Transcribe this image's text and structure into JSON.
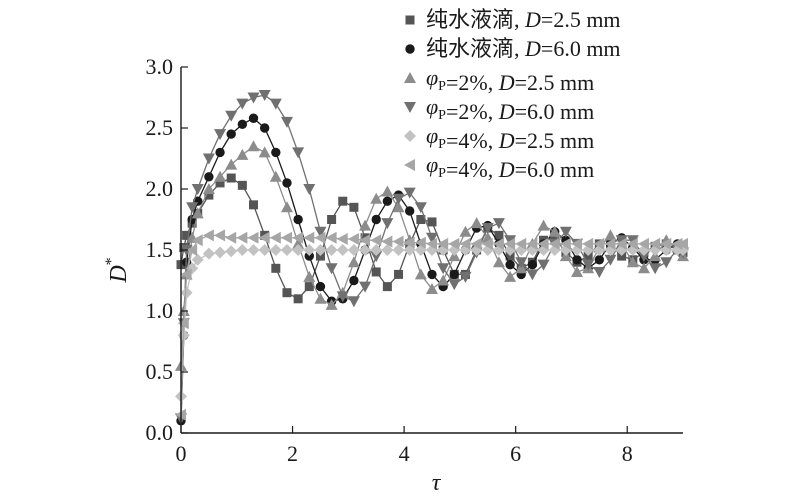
{
  "chart_data": {
    "type": "line",
    "xlabel": "τ",
    "ylabel": "D*",
    "xlim": [
      0,
      9
    ],
    "ylim": [
      0,
      3
    ],
    "x_ticks": [
      0,
      2,
      4,
      6,
      8
    ],
    "y_ticks": [
      0.0,
      0.5,
      1.0,
      1.5,
      2.0,
      2.5,
      3.0
    ],
    "x_tick_labels": [
      "0",
      "2",
      "4",
      "6",
      "8"
    ],
    "y_tick_labels": [
      "0.0",
      "0.5",
      "1.0",
      "1.5",
      "2.0",
      "2.5",
      "3.0"
    ],
    "grid": false,
    "legend_position": "top-right",
    "legend": [
      "纯水液滴, D=2.5 mm",
      "纯水液滴, D=6.0 mm",
      "φP=2%, D=2.5 mm",
      "φP=2%, D=6.0 mm",
      "φP=4%, D=2.5 mm",
      "φP=4%, D=6.0 mm"
    ],
    "series": [
      {
        "name": "纯水液滴, D=2.5 mm",
        "color": "#555555",
        "marker": "square",
        "x": [
          0,
          0.05,
          0.1,
          0.2,
          0.3,
          0.5,
          0.7,
          0.9,
          1.1,
          1.3,
          1.5,
          1.7,
          1.9,
          2.1,
          2.3,
          2.5,
          2.7,
          2.9,
          3.1,
          3.3,
          3.5,
          3.7,
          3.9,
          4.1,
          4.3,
          4.5,
          4.7,
          4.9,
          5.1,
          5.3,
          5.5,
          5.7,
          5.9,
          6.1,
          6.3,
          6.5,
          6.7,
          6.9,
          7.1,
          7.3,
          7.5,
          7.7,
          7.9,
          8.1,
          8.3,
          8.5,
          8.7,
          8.9,
          9.0
        ],
        "y": [
          1.38,
          1.52,
          1.62,
          1.72,
          1.8,
          1.95,
          2.05,
          2.09,
          2.03,
          1.87,
          1.62,
          1.35,
          1.15,
          1.1,
          1.2,
          1.45,
          1.75,
          1.9,
          1.85,
          1.6,
          1.32,
          1.2,
          1.3,
          1.55,
          1.75,
          1.73,
          1.5,
          1.3,
          1.3,
          1.5,
          1.68,
          1.62,
          1.45,
          1.35,
          1.4,
          1.58,
          1.6,
          1.48,
          1.4,
          1.45,
          1.55,
          1.55,
          1.45,
          1.42,
          1.48,
          1.53,
          1.55,
          1.5,
          1.48
        ]
      },
      {
        "name": "纯水液滴, D=6.0 mm",
        "color": "#1a1a1a",
        "marker": "circle",
        "x": [
          0,
          0.05,
          0.1,
          0.2,
          0.3,
          0.5,
          0.7,
          0.9,
          1.1,
          1.3,
          1.5,
          1.7,
          1.9,
          2.1,
          2.3,
          2.5,
          2.7,
          2.9,
          3.1,
          3.3,
          3.5,
          3.7,
          3.9,
          4.1,
          4.3,
          4.5,
          4.7,
          4.9,
          5.1,
          5.3,
          5.5,
          5.7,
          5.9,
          6.1,
          6.3,
          6.5,
          6.7,
          6.9,
          7.1,
          7.3,
          7.5,
          7.7,
          7.9,
          8.1,
          8.3,
          8.5,
          8.7,
          8.9,
          9.0
        ],
        "y": [
          0.1,
          0.8,
          1.4,
          1.75,
          1.9,
          2.1,
          2.3,
          2.45,
          2.53,
          2.58,
          2.5,
          2.3,
          2.05,
          1.75,
          1.45,
          1.2,
          1.08,
          1.1,
          1.25,
          1.5,
          1.75,
          1.9,
          1.95,
          1.82,
          1.55,
          1.3,
          1.2,
          1.3,
          1.5,
          1.68,
          1.7,
          1.55,
          1.38,
          1.3,
          1.38,
          1.55,
          1.65,
          1.58,
          1.42,
          1.35,
          1.42,
          1.55,
          1.6,
          1.52,
          1.42,
          1.42,
          1.5,
          1.55,
          1.52
        ]
      },
      {
        "name": "φP=2%, D=2.5 mm",
        "color": "#8c8c8c",
        "marker": "triangle-up",
        "x": [
          0,
          0.05,
          0.1,
          0.2,
          0.3,
          0.5,
          0.7,
          0.9,
          1.1,
          1.3,
          1.5,
          1.7,
          1.9,
          2.1,
          2.3,
          2.5,
          2.7,
          2.9,
          3.1,
          3.3,
          3.5,
          3.7,
          3.9,
          4.1,
          4.3,
          4.5,
          4.7,
          4.9,
          5.1,
          5.3,
          5.5,
          5.7,
          5.9,
          6.1,
          6.3,
          6.5,
          6.7,
          6.9,
          7.1,
          7.3,
          7.5,
          7.7,
          7.9,
          8.1,
          8.3,
          8.5,
          8.7,
          8.9,
          9.0
        ],
        "y": [
          0.55,
          1.0,
          1.3,
          1.6,
          1.8,
          2.0,
          2.1,
          2.2,
          2.28,
          2.35,
          2.3,
          2.1,
          1.85,
          1.55,
          1.28,
          1.1,
          1.05,
          1.15,
          1.4,
          1.7,
          1.92,
          1.98,
          1.85,
          1.58,
          1.3,
          1.18,
          1.25,
          1.45,
          1.65,
          1.72,
          1.6,
          1.4,
          1.28,
          1.35,
          1.55,
          1.7,
          1.65,
          1.45,
          1.32,
          1.35,
          1.52,
          1.62,
          1.55,
          1.4,
          1.35,
          1.45,
          1.58,
          1.52,
          1.45
        ]
      },
      {
        "name": "φP=2%, D=6.0 mm",
        "color": "#707070",
        "marker": "triangle-down",
        "x": [
          0,
          0.05,
          0.1,
          0.2,
          0.3,
          0.5,
          0.7,
          0.9,
          1.1,
          1.3,
          1.5,
          1.7,
          1.9,
          2.1,
          2.3,
          2.5,
          2.7,
          2.9,
          3.1,
          3.3,
          3.5,
          3.7,
          3.9,
          4.1,
          4.3,
          4.5,
          4.7,
          4.9,
          5.1,
          5.3,
          5.5,
          5.7,
          5.9,
          6.1,
          6.3,
          6.5,
          6.7,
          6.9,
          7.1,
          7.3,
          7.5,
          7.7,
          7.9,
          8.1,
          8.3,
          8.5,
          8.7,
          8.9,
          9.0
        ],
        "y": [
          0.12,
          0.9,
          1.5,
          1.85,
          2.0,
          2.25,
          2.45,
          2.6,
          2.7,
          2.75,
          2.77,
          2.7,
          2.55,
          2.3,
          2.0,
          1.65,
          1.35,
          1.12,
          1.08,
          1.2,
          1.45,
          1.72,
          1.92,
          1.97,
          1.85,
          1.6,
          1.35,
          1.22,
          1.28,
          1.48,
          1.68,
          1.72,
          1.58,
          1.4,
          1.3,
          1.38,
          1.55,
          1.65,
          1.55,
          1.38,
          1.32,
          1.42,
          1.58,
          1.58,
          1.45,
          1.35,
          1.4,
          1.5,
          1.48
        ]
      },
      {
        "name": "φP=4%, D=2.5 mm",
        "color": "#c2c2c2",
        "marker": "diamond",
        "x": [
          0,
          0.05,
          0.1,
          0.2,
          0.3,
          0.5,
          0.7,
          0.9,
          1.1,
          1.3,
          1.5,
          1.7,
          1.9,
          2.1,
          2.3,
          2.5,
          2.7,
          2.9,
          3.1,
          3.3,
          3.5,
          3.7,
          3.9,
          4.1,
          4.3,
          4.5,
          4.7,
          4.9,
          5.1,
          5.3,
          5.5,
          5.7,
          5.9,
          6.1,
          6.3,
          6.5,
          6.7,
          6.9,
          7.1,
          7.3,
          7.5,
          7.7,
          7.9,
          8.1,
          8.3,
          8.5,
          8.7,
          8.9,
          9.0
        ],
        "y": [
          0.3,
          0.8,
          1.15,
          1.35,
          1.42,
          1.47,
          1.48,
          1.49,
          1.5,
          1.5,
          1.5,
          1.5,
          1.5,
          1.5,
          1.5,
          1.5,
          1.5,
          1.5,
          1.5,
          1.5,
          1.5,
          1.5,
          1.5,
          1.5,
          1.5,
          1.5,
          1.5,
          1.5,
          1.5,
          1.5,
          1.5,
          1.5,
          1.5,
          1.5,
          1.5,
          1.5,
          1.5,
          1.5,
          1.5,
          1.5,
          1.5,
          1.5,
          1.5,
          1.5,
          1.5,
          1.5,
          1.5,
          1.5,
          1.5
        ]
      },
      {
        "name": "φP=4%, D=6.0 mm",
        "color": "#a6a6a6",
        "marker": "triangle-left",
        "x": [
          0,
          0.05,
          0.1,
          0.2,
          0.3,
          0.5,
          0.7,
          0.9,
          1.1,
          1.3,
          1.5,
          1.7,
          1.9,
          2.1,
          2.3,
          2.5,
          2.7,
          2.9,
          3.1,
          3.3,
          3.5,
          3.7,
          3.9,
          4.1,
          4.3,
          4.5,
          4.7,
          4.9,
          5.1,
          5.3,
          5.5,
          5.7,
          5.9,
          6.1,
          6.3,
          6.5,
          6.7,
          6.9,
          7.1,
          7.3,
          7.5,
          7.7,
          7.9,
          8.1,
          8.3,
          8.5,
          8.7,
          8.9,
          9.0
        ],
        "y": [
          0.15,
          0.9,
          1.3,
          1.5,
          1.58,
          1.62,
          1.62,
          1.6,
          1.6,
          1.6,
          1.6,
          1.6,
          1.6,
          1.6,
          1.6,
          1.6,
          1.6,
          1.59,
          1.59,
          1.58,
          1.58,
          1.57,
          1.57,
          1.56,
          1.56,
          1.55,
          1.55,
          1.55,
          1.55,
          1.55,
          1.55,
          1.55,
          1.55,
          1.55,
          1.55,
          1.55,
          1.55,
          1.55,
          1.55,
          1.55,
          1.55,
          1.55,
          1.55,
          1.55,
          1.55,
          1.55,
          1.55,
          1.55,
          1.55
        ]
      }
    ]
  }
}
